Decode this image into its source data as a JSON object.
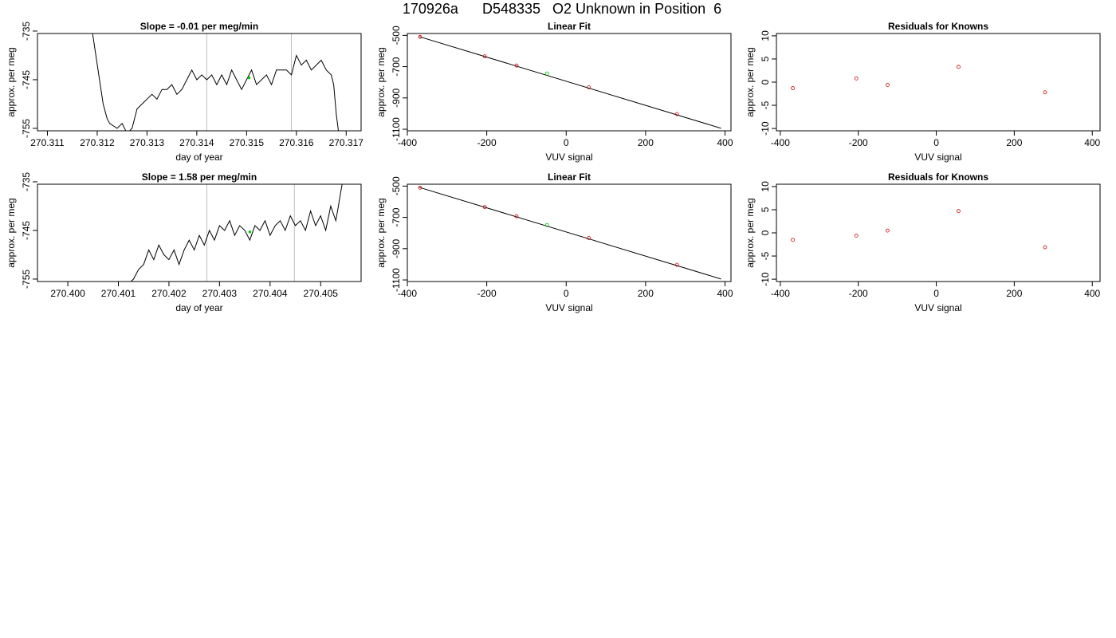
{
  "page_title": "170926a      D548335   O2 Unknown in Position  6",
  "colors": {
    "line": "#000000",
    "known_points": "#cc0000",
    "unknown_point": "#00cc00",
    "vline": "#bfbfbf"
  },
  "chart_data": [
    {
      "type": "line",
      "title": "Slope =  -0.01  per meg/min",
      "xlabel": "day of year",
      "ylabel": "approx. per meg",
      "xlim": [
        270.3108,
        270.3173
      ],
      "ylim": [
        -755.5,
        -735.5
      ],
      "xticks": [
        "270.311",
        "270.312",
        "270.313",
        "270.314",
        "270.315",
        "270.316",
        "270.317"
      ],
      "yticks": [
        "-735",
        "-745",
        "-755"
      ],
      "vlines": [
        270.3142,
        270.3159
      ],
      "marker": {
        "x": 270.31505,
        "y": -744.6
      },
      "x": [
        270.3119,
        270.31212,
        270.3122,
        270.31225,
        270.3124,
        270.3125,
        270.3126,
        270.3127,
        270.3128,
        270.3129,
        270.313,
        270.3131,
        270.3132,
        270.3133,
        270.3134,
        270.3135,
        270.3136,
        270.3137,
        270.3138,
        270.3139,
        270.314,
        270.3141,
        270.3142,
        270.3143,
        270.3144,
        270.3145,
        270.3146,
        270.3147,
        270.3148,
        270.3149,
        270.315,
        270.3151,
        270.3152,
        270.3153,
        270.3154,
        270.3155,
        270.3156,
        270.3157,
        270.3158,
        270.3159,
        270.316,
        270.3161,
        270.3162,
        270.3163,
        270.3164,
        270.3165,
        270.3166,
        270.3167,
        270.31675,
        270.3168,
        270.31685
      ],
      "y": [
        -735,
        -750,
        -753,
        -754,
        -755,
        -754,
        -756,
        -755,
        -751,
        -750,
        -749,
        -748,
        -749,
        -747,
        -747,
        -746,
        -748,
        -747,
        -745,
        -743,
        -745,
        -744,
        -745,
        -744,
        -746,
        -744,
        -746,
        -743,
        -745,
        -747,
        -745,
        -743,
        -746,
        -745,
        -744,
        -746,
        -743,
        -743,
        -743,
        -744,
        -740,
        -742,
        -741,
        -743,
        -742,
        -741,
        -743,
        -744,
        -746,
        -752,
        -756
      ]
    },
    {
      "type": "scatter",
      "title": "Linear Fit",
      "xlabel": "VUV signal",
      "ylabel": "approx. per meg",
      "xlim": [
        -400,
        415
      ],
      "ylim": [
        -1110,
        -488
      ],
      "xticks": [
        "-400",
        "-200",
        "0",
        "200",
        "400"
      ],
      "yticks": [
        "-500",
        "-700",
        "-900",
        "-1100"
      ],
      "fit_line": {
        "x": [
          -370,
          390
        ],
        "y": [
          -508,
          -1094
        ]
      },
      "known_points": {
        "x": [
          -368,
          -205,
          -125,
          57,
          279
        ],
        "y": [
          -510,
          -634,
          -693,
          -832,
          -1003
        ]
      },
      "unknown_point": {
        "x": -48,
        "y": -744
      }
    },
    {
      "type": "scatter",
      "title": "Residuals for Knowns",
      "xlabel": "VUV signal",
      "ylabel": "approx. per meg",
      "xlim": [
        -410,
        420
      ],
      "ylim": [
        -10.5,
        10.5
      ],
      "xticks": [
        "-400",
        "-200",
        "0",
        "200",
        "400"
      ],
      "yticks": [
        "10",
        "5",
        "0",
        "-5",
        "-10"
      ],
      "points": {
        "x": [
          -368,
          -205,
          -125,
          57,
          279
        ],
        "y": [
          -1.3,
          0.8,
          -0.6,
          3.3,
          -2.2
        ]
      }
    },
    {
      "type": "line",
      "title": "Slope =  1.58  per meg/min",
      "xlabel": "day of year",
      "ylabel": "approx. per meg",
      "xlim": [
        270.3994,
        270.4058
      ],
      "ylim": [
        -755.5,
        -735.5
      ],
      "xticks": [
        "270.400",
        "270.401",
        "270.402",
        "270.403",
        "270.404",
        "270.405"
      ],
      "yticks": [
        "-735",
        "-745",
        "-755"
      ],
      "vlines": [
        270.40275,
        270.40448
      ],
      "marker": {
        "x": 270.4036,
        "y": -745.3
      },
      "x": [
        270.4012,
        270.4013,
        270.4014,
        270.4015,
        270.4016,
        270.4017,
        270.4018,
        270.4019,
        270.402,
        270.4021,
        270.4022,
        270.4023,
        270.4024,
        270.4025,
        270.4026,
        270.4027,
        270.4028,
        270.4029,
        270.403,
        270.4031,
        270.4032,
        270.4033,
        270.4034,
        270.4035,
        270.4036,
        270.4037,
        270.4038,
        270.4039,
        270.404,
        270.4041,
        270.4042,
        270.4043,
        270.4044,
        270.4045,
        270.4046,
        270.4047,
        270.4048,
        270.4049,
        270.405,
        270.4051,
        270.4052,
        270.4053,
        270.40535,
        270.4054,
        270.40545
      ],
      "y": [
        -756,
        -755,
        -753,
        -752,
        -749,
        -751,
        -748,
        -750,
        -751,
        -749,
        -752,
        -749,
        -747,
        -749,
        -746,
        -748,
        -745,
        -747,
        -744,
        -745,
        -743,
        -746,
        -744,
        -745,
        -747,
        -744,
        -745,
        -743,
        -746,
        -744,
        -743,
        -745,
        -742,
        -744,
        -743,
        -745,
        -741,
        -744,
        -742,
        -745,
        -740,
        -743,
        -740,
        -737,
        -734
      ]
    },
    {
      "type": "scatter",
      "title": "Linear Fit",
      "xlabel": "VUV signal",
      "ylabel": "approx. per meg",
      "xlim": [
        -400,
        415
      ],
      "ylim": [
        -1110,
        -488
      ],
      "xticks": [
        "-400",
        "-200",
        "0",
        "200",
        "400"
      ],
      "yticks": [
        "-500",
        "-700",
        "-900",
        "-1100"
      ],
      "fit_line": {
        "x": [
          -370,
          390
        ],
        "y": [
          -508,
          -1094
        ]
      },
      "known_points": {
        "x": [
          -368,
          -205,
          -125,
          57,
          279
        ],
        "y": [
          -510,
          -634,
          -693,
          -832,
          -1003
        ]
      },
      "unknown_point": {
        "x": -48,
        "y": -749
      }
    },
    {
      "type": "scatter",
      "title": "Residuals for Knowns",
      "xlabel": "VUV signal",
      "ylabel": "approx. per meg",
      "xlim": [
        -410,
        420
      ],
      "ylim": [
        -10.5,
        10.5
      ],
      "xticks": [
        "-400",
        "-200",
        "0",
        "200",
        "400"
      ],
      "yticks": [
        "10",
        "5",
        "0",
        "-5",
        "-10"
      ],
      "points": {
        "x": [
          -368,
          -205,
          -125,
          57,
          279
        ],
        "y": [
          -1.5,
          -0.6,
          0.5,
          4.7,
          -3.1
        ]
      }
    }
  ]
}
